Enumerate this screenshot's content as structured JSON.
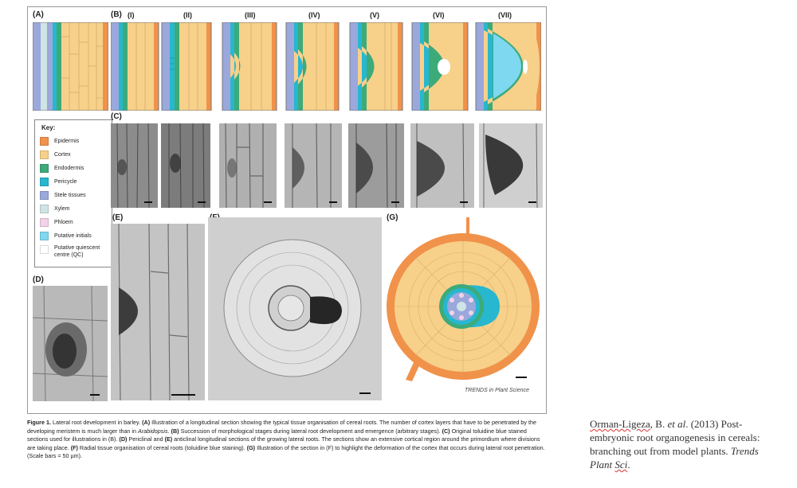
{
  "figure": {
    "panel_labels": {
      "a": "(A)",
      "b": "(B)",
      "c": "(C)",
      "d": "(D)",
      "e": "(E)",
      "f": "(F)",
      "g": "(G)"
    },
    "stage_labels": [
      "(I)",
      "(II)",
      "(III)",
      "(IV)",
      "(V)",
      "(VI)",
      "(VII)"
    ],
    "key": {
      "title": "Key:",
      "items": [
        {
          "label": "Epidermis",
          "color": "#f0924a"
        },
        {
          "label": "Cortex",
          "color": "#f7d08a"
        },
        {
          "label": "Endodermis",
          "color": "#3daa7a"
        },
        {
          "label": "Pericycle",
          "color": "#27b7cf"
        },
        {
          "label": "Stele tissues",
          "color": "#9aa8dc"
        },
        {
          "label": "Xylem",
          "color": "#cfe4e4"
        },
        {
          "label": "Phloem",
          "color": "#f2d3ea"
        },
        {
          "label": "Putative initials",
          "color": "#7ed8ef"
        },
        {
          "label": "Putative quiescent centre (QC)",
          "color": "#ffffff"
        }
      ]
    },
    "journal_mark": "TRENDS in Plant Science",
    "colors": {
      "epidermis": "#f0924a",
      "cortex": "#f7d08a",
      "endodermis": "#3daa7a",
      "pericycle": "#27b7cf",
      "stele": "#9aa8dc",
      "xylem": "#cfe4e4",
      "phloem": "#f2d3ea",
      "initials": "#7ed8ef"
    }
  },
  "caption": {
    "label": "Figure 1.",
    "parts": [
      {
        "t": " Lateral root development in barley. "
      },
      {
        "b": "(A)"
      },
      {
        "t": " Illustration of a longitudinal section showing the typical tissue organisation of cereal roots. The number of cortex layers that have to be penetrated by the developing meristem is much larger than in "
      },
      {
        "i": "Arabidopsis"
      },
      {
        "t": ". "
      },
      {
        "b": "(B)"
      },
      {
        "t": " Succession of morphological stages during lateral root development and emergence (arbitrary stages). "
      },
      {
        "b": "(C)"
      },
      {
        "t": " Original toluidine blue stained sections used for illustrations in (B). "
      },
      {
        "b": "(D)"
      },
      {
        "t": " Periclinal and "
      },
      {
        "b": "(E)"
      },
      {
        "t": " anticlinal longitudinal sections of the growing lateral roots. The sections show an extensive cortical region around the primordium where divisions are taking place. "
      },
      {
        "b": "(F)"
      },
      {
        "t": " Radial tissue organisation of cereal roots (toluidine blue staining). "
      },
      {
        "b": "(G)"
      },
      {
        "t": " Illustration of the section in (F) to highlight the deformation of the cortex that occurs during lateral root penetration. (Scale bars = 50 µm)."
      }
    ]
  },
  "citation": {
    "author_a": "Orman-Ligeza",
    "author_b": ", B. ",
    "etal": "et al",
    "year_title": ". (2013) Post-embryonic root organogenesis in cereals: branching out from model plants. ",
    "journal_a": "Trends Plant ",
    "journal_b": "Sci",
    "end": "."
  }
}
